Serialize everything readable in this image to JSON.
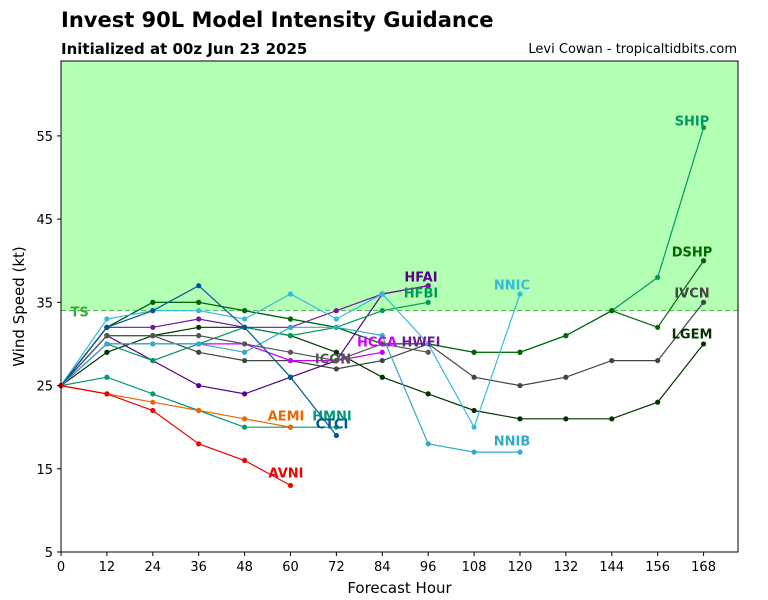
{
  "header": {
    "title": "Invest 90L Model Intensity Guidance",
    "subtitle": "Initialized at 00z Jun 23 2025",
    "credit": "Levi Cowan - tropicaltidbits.com"
  },
  "chart_data": {
    "type": "line",
    "title": "Invest 90L Model Intensity Guidance",
    "subtitle": "Initialized at 00z Jun 23 2025",
    "xlabel": "Forecast Hour",
    "ylabel": "Wind Speed (kt)",
    "xlim": [
      0,
      177
    ],
    "ylim": [
      5,
      64
    ],
    "xticks": [
      0,
      12,
      24,
      36,
      48,
      60,
      72,
      84,
      96,
      108,
      120,
      132,
      144,
      156,
      168
    ],
    "yticks": [
      5,
      15,
      25,
      35,
      45,
      55
    ],
    "grid": false,
    "legend": "none",
    "thresholds": [
      {
        "label": "TS",
        "value": 34,
        "fill_above": "#b3ffb3",
        "color": "#4caf50",
        "label_color": "#3aa83a"
      },
      {
        "label": "",
        "value": 64,
        "fill_above": "#ffffb3",
        "color": "#c8c800"
      }
    ],
    "series": [
      {
        "name": "SHIP",
        "color": "#009966",
        "x": [
          0,
          12,
          24,
          36,
          48,
          60,
          72,
          84,
          96,
          108,
          120,
          132,
          144,
          156,
          168
        ],
        "y": [
          25,
          32,
          35,
          35,
          34,
          33,
          32,
          30,
          30,
          29,
          29,
          31,
          34,
          38,
          56
        ]
      },
      {
        "name": "DSHP",
        "color": "#006600",
        "x": [
          0,
          12,
          24,
          36,
          48,
          60,
          72,
          84,
          96,
          108,
          120,
          132,
          144,
          156,
          168
        ],
        "y": [
          25,
          32,
          35,
          35,
          34,
          33,
          32,
          30,
          30,
          29,
          29,
          31,
          34,
          32,
          40
        ]
      },
      {
        "name": "IVCN",
        "color": "#444444",
        "x": [
          0,
          12,
          24,
          36,
          48,
          60,
          72,
          84,
          96,
          108,
          120,
          132,
          144,
          156,
          168
        ],
        "y": [
          25,
          31,
          31,
          29,
          28,
          28,
          27,
          28,
          30,
          26,
          25,
          26,
          28,
          28,
          35
        ]
      },
      {
        "name": "LGEM",
        "color": "#003300",
        "x": [
          0,
          12,
          24,
          36,
          48,
          60,
          72,
          84,
          96,
          108,
          120,
          132,
          144,
          156,
          168
        ],
        "y": [
          25,
          29,
          31,
          32,
          32,
          31,
          29,
          26,
          24,
          22,
          21,
          21,
          21,
          23,
          30
        ]
      },
      {
        "name": "HFAI",
        "color": "#550088",
        "x": [
          0,
          12,
          24,
          36,
          48,
          60,
          72,
          84,
          96
        ],
        "y": [
          25,
          31,
          28,
          25,
          24,
          26,
          28,
          36,
          37
        ]
      },
      {
        "name": "HFBI",
        "color": "#009955",
        "x": [
          0,
          12,
          24,
          36,
          48,
          60,
          72,
          84,
          96
        ],
        "y": [
          25,
          30,
          28,
          30,
          32,
          31,
          32,
          34,
          35
        ]
      },
      {
        "name": "HWFI",
        "color": "#6a1a9a",
        "x": [
          0,
          12,
          24,
          36,
          48,
          60,
          72,
          84,
          96
        ],
        "y": [
          25,
          32,
          32,
          33,
          32,
          32,
          34,
          36,
          37
        ]
      },
      {
        "name": "HCCA",
        "color": "#cc00ff",
        "x": [
          0,
          12,
          24,
          36,
          48,
          60,
          72,
          84
        ],
        "y": [
          25,
          30,
          30,
          30,
          30,
          28,
          28,
          29
        ]
      },
      {
        "name": "ICON",
        "color": "#555555",
        "x": [
          0,
          12,
          24,
          36,
          48,
          60,
          72,
          84,
          96
        ],
        "y": [
          25,
          31,
          31,
          31,
          30,
          29,
          28,
          30,
          29
        ]
      },
      {
        "name": "NNIC",
        "color": "#33bbdd",
        "x": [
          0,
          12,
          24,
          36,
          48,
          60,
          72,
          84,
          96,
          108,
          120
        ],
        "y": [
          25,
          33,
          34,
          34,
          33,
          36,
          33,
          36,
          30,
          20,
          36
        ]
      },
      {
        "name": "NNIB",
        "color": "#33aacc",
        "x": [
          0,
          12,
          24,
          36,
          48,
          60,
          72,
          84,
          96,
          108,
          120
        ],
        "y": [
          25,
          30,
          30,
          30,
          29,
          32,
          32,
          31,
          18,
          17,
          17
        ]
      },
      {
        "name": "HMNI",
        "color": "#009977",
        "x": [
          0,
          12,
          24,
          36,
          48,
          60,
          72
        ],
        "y": [
          25,
          26,
          24,
          22,
          20,
          20,
          20
        ]
      },
      {
        "name": "CTCI",
        "color": "#005599",
        "x": [
          0,
          12,
          24,
          36,
          48,
          60,
          72
        ],
        "y": [
          25,
          32,
          34,
          37,
          32,
          26,
          19
        ]
      },
      {
        "name": "AEMI",
        "color": "#ee6600",
        "x": [
          0,
          12,
          24,
          36,
          48,
          60
        ],
        "y": [
          25,
          24,
          23,
          22,
          21,
          20
        ]
      },
      {
        "name": "AVNI",
        "color": "#ee0000",
        "x": [
          0,
          12,
          24,
          36,
          48,
          60
        ],
        "y": [
          25,
          24,
          22,
          18,
          16,
          13
        ]
      }
    ],
    "annotations": [
      {
        "text": "SHIP",
        "color": "#009966"
      },
      {
        "text": "DSHP",
        "color": "#006600"
      },
      {
        "text": "IVCN",
        "color": "#444444"
      },
      {
        "text": "LGEM",
        "color": "#003300"
      },
      {
        "text": "HFAI",
        "color": "#550088"
      },
      {
        "text": "HFBI",
        "color": "#009955"
      },
      {
        "text": "HWFI",
        "color": "#6a1a9a"
      },
      {
        "text": "HCCA",
        "color": "#cc00ff"
      },
      {
        "text": "ICON",
        "color": "#555555"
      },
      {
        "text": "NNIC",
        "color": "#33bbdd"
      },
      {
        "text": "NNIB",
        "color": "#33aacc"
      },
      {
        "text": "HMNI",
        "color": "#009977"
      },
      {
        "text": "CTCI",
        "color": "#005599"
      },
      {
        "text": "AEMI",
        "color": "#ee6600"
      },
      {
        "text": "AVNI",
        "color": "#ee0000"
      }
    ]
  }
}
